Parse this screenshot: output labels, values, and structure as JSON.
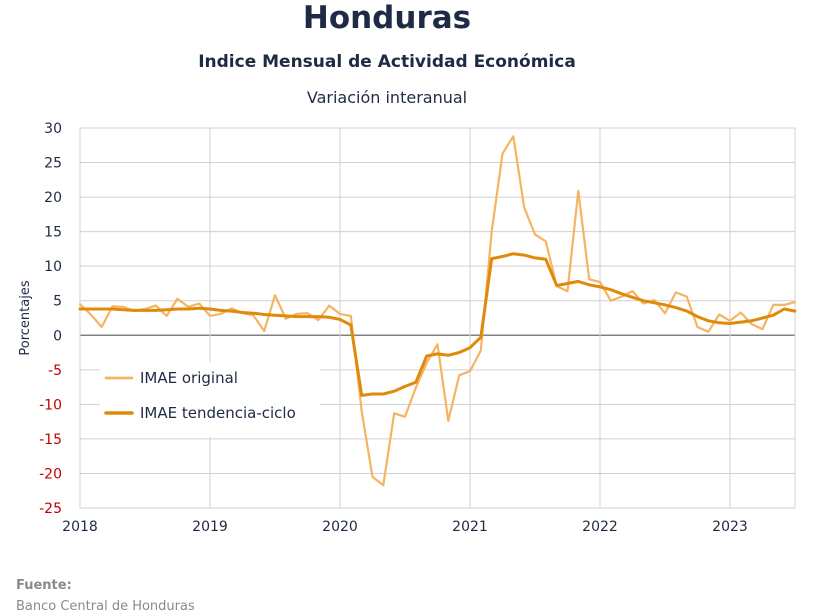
{
  "header": {
    "title": "Honduras",
    "subtitle": "Indice Mensual de  Actividad Económica",
    "subtitle2": "Variación interanual"
  },
  "footer": {
    "source_label": "Fuente:",
    "source_text": "Banco Central de Honduras"
  },
  "colors": {
    "original": "#f5b461",
    "trend": "#e08a0c",
    "grid": "#d0d0d0",
    "zero_line": "#808080",
    "negative_tick": "#c00000",
    "text": "#1f2a44"
  },
  "chart_data": {
    "type": "line",
    "title": "Honduras",
    "subtitle": "Indice Mensual de  Actividad Económica",
    "ylabel": "Porcentajes",
    "xlabel": "",
    "ylim": [
      -25,
      30
    ],
    "yticks": [
      -25,
      -20,
      -15,
      -10,
      -5,
      0,
      5,
      10,
      15,
      20,
      25,
      30
    ],
    "xlim": [
      "2018-01",
      "2023-07"
    ],
    "x_ticks": [
      "2018",
      "2019",
      "2020",
      "2021",
      "2022",
      "2023"
    ],
    "grid": true,
    "legend_position": "lower-left",
    "series": [
      {
        "name": "IMAE original",
        "values": [
          [
            "2018-01",
            4.5
          ],
          [
            "2018-02",
            3.0
          ],
          [
            "2018-03",
            1.2
          ],
          [
            "2018-04",
            4.2
          ],
          [
            "2018-05",
            4.1
          ],
          [
            "2018-06",
            3.5
          ],
          [
            "2018-07",
            3.8
          ],
          [
            "2018-08",
            4.3
          ],
          [
            "2018-09",
            2.8
          ],
          [
            "2018-10",
            5.3
          ],
          [
            "2018-11",
            4.1
          ],
          [
            "2018-12",
            4.6
          ],
          [
            "2019-01",
            2.8
          ],
          [
            "2019-02",
            3.1
          ],
          [
            "2019-03",
            3.9
          ],
          [
            "2019-04",
            3.2
          ],
          [
            "2019-05",
            2.9
          ],
          [
            "2019-06",
            0.6
          ],
          [
            "2019-07",
            5.8
          ],
          [
            "2019-08",
            2.4
          ],
          [
            "2019-09",
            3.1
          ],
          [
            "2019-10",
            3.2
          ],
          [
            "2019-11",
            2.2
          ],
          [
            "2019-12",
            4.3
          ],
          [
            "2020-01",
            3.1
          ],
          [
            "2020-02",
            2.8
          ],
          [
            "2020-03",
            -11.0
          ],
          [
            "2020-04",
            -20.5
          ],
          [
            "2020-05",
            -21.7
          ],
          [
            "2020-06",
            -11.3
          ],
          [
            "2020-07",
            -11.8
          ],
          [
            "2020-08",
            -7.6
          ],
          [
            "2020-09",
            -4.0
          ],
          [
            "2020-10",
            -1.3
          ],
          [
            "2020-11",
            -12.4
          ],
          [
            "2020-12",
            -5.8
          ],
          [
            "2021-01",
            -5.2
          ],
          [
            "2021-02",
            -2.2
          ],
          [
            "2021-03",
            15.0
          ],
          [
            "2021-04",
            26.3
          ],
          [
            "2021-05",
            28.8
          ],
          [
            "2021-06",
            18.5
          ],
          [
            "2021-07",
            14.6
          ],
          [
            "2021-08",
            13.6
          ],
          [
            "2021-09",
            7.1
          ],
          [
            "2021-10",
            6.4
          ],
          [
            "2021-11",
            20.9
          ],
          [
            "2021-12",
            8.1
          ],
          [
            "2022-01",
            7.7
          ],
          [
            "2022-02",
            5.0
          ],
          [
            "2022-03",
            5.6
          ],
          [
            "2022-04",
            6.4
          ],
          [
            "2022-05",
            4.6
          ],
          [
            "2022-06",
            5.1
          ],
          [
            "2022-07",
            3.2
          ],
          [
            "2022-08",
            6.2
          ],
          [
            "2022-09",
            5.6
          ],
          [
            "2022-10",
            1.2
          ],
          [
            "2022-11",
            0.5
          ],
          [
            "2022-12",
            3.0
          ],
          [
            "2023-01",
            2.1
          ],
          [
            "2023-02",
            3.3
          ],
          [
            "2023-03",
            1.6
          ],
          [
            "2023-04",
            0.9
          ],
          [
            "2023-05",
            4.4
          ],
          [
            "2023-06",
            4.4
          ],
          [
            "2023-07",
            4.8
          ]
        ]
      },
      {
        "name": "IMAE tendencia-ciclo",
        "values": [
          [
            "2018-01",
            3.8
          ],
          [
            "2018-02",
            3.8
          ],
          [
            "2018-03",
            3.8
          ],
          [
            "2018-04",
            3.8
          ],
          [
            "2018-05",
            3.7
          ],
          [
            "2018-06",
            3.6
          ],
          [
            "2018-07",
            3.6
          ],
          [
            "2018-08",
            3.6
          ],
          [
            "2018-09",
            3.7
          ],
          [
            "2018-10",
            3.8
          ],
          [
            "2018-11",
            3.8
          ],
          [
            "2018-12",
            3.9
          ],
          [
            "2019-01",
            3.8
          ],
          [
            "2019-02",
            3.6
          ],
          [
            "2019-03",
            3.5
          ],
          [
            "2019-04",
            3.3
          ],
          [
            "2019-05",
            3.2
          ],
          [
            "2019-06",
            3.0
          ],
          [
            "2019-07",
            2.9
          ],
          [
            "2019-08",
            2.8
          ],
          [
            "2019-09",
            2.7
          ],
          [
            "2019-10",
            2.7
          ],
          [
            "2019-11",
            2.7
          ],
          [
            "2019-12",
            2.6
          ],
          [
            "2020-01",
            2.3
          ],
          [
            "2020-02",
            1.5
          ],
          [
            "2020-03",
            -8.7
          ],
          [
            "2020-04",
            -8.5
          ],
          [
            "2020-05",
            -8.5
          ],
          [
            "2020-06",
            -8.1
          ],
          [
            "2020-07",
            -7.4
          ],
          [
            "2020-08",
            -6.8
          ],
          [
            "2020-09",
            -3.0
          ],
          [
            "2020-10",
            -2.7
          ],
          [
            "2020-11",
            -2.9
          ],
          [
            "2020-12",
            -2.5
          ],
          [
            "2021-01",
            -1.8
          ],
          [
            "2021-02",
            -0.3
          ],
          [
            "2021-03",
            11.1
          ],
          [
            "2021-04",
            11.4
          ],
          [
            "2021-05",
            11.8
          ],
          [
            "2021-06",
            11.6
          ],
          [
            "2021-07",
            11.2
          ],
          [
            "2021-08",
            11.0
          ],
          [
            "2021-09",
            7.2
          ],
          [
            "2021-10",
            7.5
          ],
          [
            "2021-11",
            7.8
          ],
          [
            "2021-12",
            7.3
          ],
          [
            "2022-01",
            7.0
          ],
          [
            "2022-02",
            6.6
          ],
          [
            "2022-03",
            6.0
          ],
          [
            "2022-04",
            5.5
          ],
          [
            "2022-05",
            5.0
          ],
          [
            "2022-06",
            4.7
          ],
          [
            "2022-07",
            4.4
          ],
          [
            "2022-08",
            4.0
          ],
          [
            "2022-09",
            3.5
          ],
          [
            "2022-10",
            2.7
          ],
          [
            "2022-11",
            2.1
          ],
          [
            "2022-12",
            1.8
          ],
          [
            "2023-01",
            1.7
          ],
          [
            "2023-02",
            1.9
          ],
          [
            "2023-03",
            2.1
          ],
          [
            "2023-04",
            2.5
          ],
          [
            "2023-05",
            2.9
          ],
          [
            "2023-06",
            3.8
          ],
          [
            "2023-07",
            3.5
          ]
        ]
      }
    ]
  }
}
